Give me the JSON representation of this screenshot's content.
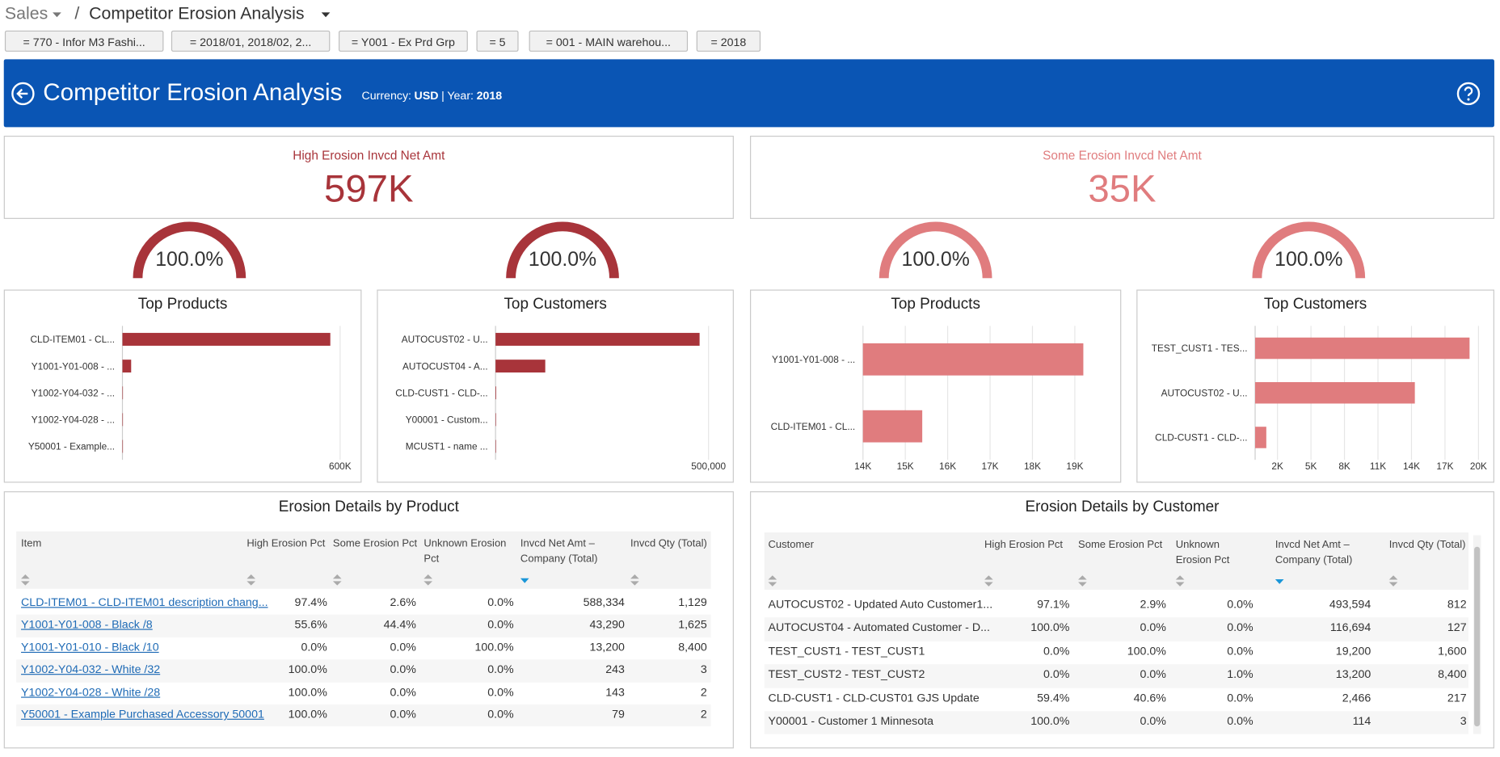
{
  "breadcrumb": {
    "parent": "Sales",
    "separator": "/",
    "current": "Competitor Erosion Analysis"
  },
  "filters": [
    "= 770 - Infor M3 Fashi...",
    "= 2018/01, 2018/02, 2...",
    "= Y001 - Ex Prd Grp",
    "= 5",
    "= 001 - MAIN warehou...",
    "= 2018"
  ],
  "header": {
    "title": "Competitor Erosion Analysis",
    "currency_label": "Currency:",
    "currency": "USD",
    "separator": "|",
    "year_label": "Year:",
    "year": "2018"
  },
  "kpis": [
    {
      "label": "High Erosion Invcd Net Amt",
      "value": "597K",
      "color": "#a8343a"
    },
    {
      "label": "Some Erosion Invcd Net Amt",
      "value": "35K",
      "color": "#e07c7e"
    }
  ],
  "chart_data": [
    {
      "type": "gauge",
      "values": [
        100
      ],
      "value_labels": [
        "100.0%"
      ],
      "ylim": [
        0,
        100
      ],
      "color": "#a8343a"
    },
    {
      "type": "gauge",
      "values": [
        100
      ],
      "value_labels": [
        "100.0%"
      ],
      "ylim": [
        0,
        100
      ],
      "color": "#a8343a"
    },
    {
      "type": "gauge",
      "values": [
        100
      ],
      "value_labels": [
        "100.0%"
      ],
      "ylim": [
        0,
        100
      ],
      "color": "#e07c7e"
    },
    {
      "type": "gauge",
      "values": [
        100
      ],
      "value_labels": [
        "100.0%"
      ],
      "ylim": [
        0,
        100
      ],
      "color": "#e07c7e"
    },
    {
      "type": "bar",
      "orientation": "horizontal",
      "title": "Top Products",
      "categories": [
        "CLD-ITEM01 - CL...",
        "Y1001-Y01-008 - ...",
        "Y1002-Y04-032 - ...",
        "Y1002-Y04-028 - ...",
        "Y50001 - Example..."
      ],
      "values": [
        573000,
        24000,
        243,
        143,
        79
      ],
      "color": "#a8343a",
      "xlim": [
        0,
        625000
      ],
      "xticks": [
        {
          "value": 600000,
          "label": "600K"
        }
      ],
      "grid": true
    },
    {
      "type": "bar",
      "orientation": "horizontal",
      "title": "Top Customers",
      "categories": [
        "AUTOCUST02 - U...",
        "AUTOCUST04 - A...",
        "CLD-CUST1 - CLD-...",
        "Y00001 - Custom...",
        "MCUST1 - name ..."
      ],
      "values": [
        479000,
        116700,
        1465,
        114,
        50
      ],
      "color": "#a8343a",
      "xlim": [
        0,
        530000
      ],
      "xticks": [
        {
          "value": 500000,
          "label": "500,000"
        }
      ],
      "grid": true
    },
    {
      "type": "bar",
      "orientation": "horizontal",
      "title": "Top Products",
      "categories": [
        "Y1001-Y01-008 - ...",
        "CLD-ITEM01 - CL..."
      ],
      "values": [
        19200,
        15400
      ],
      "color": "#e07c7e",
      "xlim": [
        14000,
        19800
      ],
      "xticks": [
        {
          "value": 14000,
          "label": "14K"
        },
        {
          "value": 15000,
          "label": "15K"
        },
        {
          "value": 16000,
          "label": "16K"
        },
        {
          "value": 17000,
          "label": "17K"
        },
        {
          "value": 18000,
          "label": "18K"
        },
        {
          "value": 19000,
          "label": "19K"
        }
      ],
      "grid": true
    },
    {
      "type": "bar",
      "orientation": "horizontal",
      "title": "Top Customers",
      "categories": [
        "TEST_CUST1 - TES...",
        "AUTOCUST02 - U...",
        "CLD-CUST1 - CLD-..."
      ],
      "values": [
        19200,
        14300,
        1000
      ],
      "color": "#e07c7e",
      "xlim": [
        0,
        20300
      ],
      "xticks": [
        {
          "value": 2000,
          "label": "2K"
        },
        {
          "value": 5000,
          "label": "5K"
        },
        {
          "value": 8000,
          "label": "8K"
        },
        {
          "value": 11000,
          "label": "11K"
        },
        {
          "value": 14000,
          "label": "14K"
        },
        {
          "value": 17000,
          "label": "17K"
        },
        {
          "value": 20000,
          "label": "20K"
        }
      ],
      "grid": true
    }
  ],
  "tables": [
    {
      "title": "Erosion Details by Product",
      "first_column_links": true,
      "sorted_column": 4,
      "columns": [
        "Item",
        "High Erosion Pct",
        "Some Erosion Pct",
        "Unknown Erosion Pct",
        "Invcd Net Amt – Company (Total)",
        "Invcd Qty (Total)"
      ],
      "rows": [
        [
          "CLD-ITEM01 - CLD-ITEM01 description chang...",
          "97.4%",
          "2.6%",
          "0.0%",
          "588,334",
          "1,129"
        ],
        [
          "Y1001-Y01-008 - Black /8",
          "55.6%",
          "44.4%",
          "0.0%",
          "43,290",
          "1,625"
        ],
        [
          "Y1001-Y01-010 - Black /10",
          "0.0%",
          "0.0%",
          "100.0%",
          "13,200",
          "8,400"
        ],
        [
          "Y1002-Y04-032 - White /32",
          "100.0%",
          "0.0%",
          "0.0%",
          "243",
          "3"
        ],
        [
          "Y1002-Y04-028 - White /28",
          "100.0%",
          "0.0%",
          "0.0%",
          "143",
          "2"
        ],
        [
          "Y50001 - Example Purchased Accessory 50001",
          "100.0%",
          "0.0%",
          "0.0%",
          "79",
          "2"
        ]
      ]
    },
    {
      "title": "Erosion Details by Customer",
      "first_column_links": false,
      "sorted_column": 4,
      "columns": [
        "Customer",
        "High Erosion Pct",
        "Some Erosion Pct",
        "Unknown Erosion Pct",
        "Invcd Net Amt – Company (Total)",
        "Invcd Qty (Total)"
      ],
      "rows": [
        [
          "AUTOCUST02 - Updated Auto Customer1...",
          "97.1%",
          "2.9%",
          "0.0%",
          "493,594",
          "812"
        ],
        [
          "AUTOCUST04 - Automated Customer - D...",
          "100.0%",
          "0.0%",
          "0.0%",
          "116,694",
          "127"
        ],
        [
          "TEST_CUST1 - TEST_CUST1",
          "0.0%",
          "100.0%",
          "0.0%",
          "19,200",
          "1,600"
        ],
        [
          "TEST_CUST2 - TEST_CUST2",
          "0.0%",
          "0.0%",
          "1.0%",
          "13,200",
          "8,400"
        ],
        [
          "CLD-CUST1 - CLD-CUST01 GJS Update",
          "59.4%",
          "40.6%",
          "0.0%",
          "2,466",
          "217"
        ],
        [
          "Y00001 - Customer 1 Minnesota",
          "100.0%",
          "0.0%",
          "0.0%",
          "114",
          "3"
        ]
      ]
    }
  ]
}
